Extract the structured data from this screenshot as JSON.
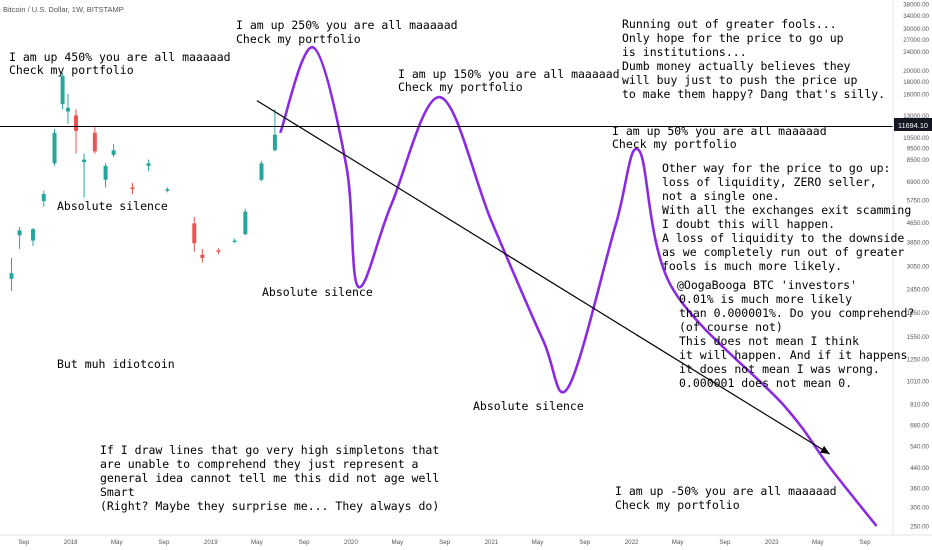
{
  "header": {
    "symbol_label": "Bitcoin / U.S. Dollar, 1W, BITSTAMP"
  },
  "price_scale": {
    "ticks": [
      "38000.00",
      "34000.00",
      "30000.00",
      "27000.00",
      "24000.00",
      "20000.00",
      "18000.00",
      "16000.00",
      "13000.00",
      "10500.00",
      "9500.00",
      "8500.00",
      "6900.00",
      "5750.00",
      "4650.00",
      "3850.00",
      "3050.00",
      "2450.00",
      "1950.00",
      "1550.00",
      "1250.00",
      "1010.00",
      "810.00",
      "660.00",
      "540.00",
      "440.00",
      "360.00",
      "300.00",
      "250.00"
    ],
    "current_price": "11694.10",
    "current_price_color": "#131722"
  },
  "time_axis": {
    "labels": [
      "Sep",
      "2018",
      "May",
      "Sep",
      "2019",
      "May",
      "Sep",
      "2020",
      "May",
      "Sep",
      "2021",
      "May",
      "Sep",
      "2022",
      "May",
      "Sep",
      "2023",
      "May",
      "Sep"
    ]
  },
  "annotations": {
    "up450": [
      "I am up 450% you are all maaaaad",
      "Check my portfolio"
    ],
    "up250": [
      "I am up 250% you are all maaaaad",
      "Check my portfolio"
    ],
    "up150": [
      "I am up 150% you are all maaaaad",
      "Check my portfolio"
    ],
    "up50": [
      "I am up 50% you are all maaaaad",
      "Check my portfolio"
    ],
    "down50": [
      "I am up -50% you are all maaaaad",
      "Check my portfolio"
    ],
    "silence1": "Absolute silence",
    "silence2": "Absolute silence",
    "silence3": "Absolute silence",
    "muh": "But muh idiotcoin",
    "greater_fools": [
      "Running out of greater fools...",
      "Only hope for the price to go up",
      "is institutions...",
      "Dumb money actually believes they",
      "will buy just to push the price up",
      "to make them happy? Dang that's silly."
    ],
    "other_way": [
      "Other way for the price to go up:",
      "loss of liquidity, ZERO seller,",
      "not a single one.",
      "With all the exchanges exit scamming",
      "I doubt this will happen.",
      "A loss of liquidity to the downside",
      "as we completely run out of greater",
      "fools is much more likely."
    ],
    "oogabooga": [
      "@OogaBooga BTC 'investors'",
      "0.01% is much more likely",
      "than 0.000001%. Do you comprehend?",
      "(of course not)",
      "This does not mean I think",
      "it will happen. And if it happens",
      "it does not mean I was wrong.",
      "0.000001 does not mean 0."
    ],
    "draw_lines": [
      "If I draw lines that go very high simpletons that",
      "are unable to comprehend they just represent a",
      "general idea cannot tell me this did not age well",
      "Smart",
      "(Right? Maybe they surprise me... They always do)"
    ]
  },
  "colors": {
    "up_candle": "#26a69a",
    "down_candle": "#ef5350",
    "projection": "#8a2be2",
    "trendline": "#000000",
    "price_line": "#000000",
    "text": "#000000"
  },
  "chart_data": {
    "type": "candlestick",
    "title": "Bitcoin / U.S. Dollar, 1W, BITSTAMP",
    "y_scale": "log",
    "candles": [
      {
        "date": "2017-07-31",
        "o": 2700,
        "h": 3300,
        "l": 2400,
        "c": 2850
      },
      {
        "date": "2017-08-21",
        "o": 4100,
        "h": 4450,
        "l": 3600,
        "c": 4300
      },
      {
        "date": "2017-09-25",
        "o": 3900,
        "h": 4400,
        "l": 3700,
        "c": 4350
      },
      {
        "date": "2017-10-23",
        "o": 5700,
        "h": 6300,
        "l": 5400,
        "c": 6100
      },
      {
        "date": "2017-11-20",
        "o": 8200,
        "h": 11400,
        "l": 8000,
        "c": 11000
      },
      {
        "date": "2017-12-11",
        "o": 14500,
        "h": 19600,
        "l": 13800,
        "c": 19000
      },
      {
        "date": "2017-12-25",
        "o": 13500,
        "h": 16000,
        "l": 12000,
        "c": 14000
      },
      {
        "date": "2018-01-15",
        "o": 13000,
        "h": 13800,
        "l": 9000,
        "c": 11200
      },
      {
        "date": "2018-02-05",
        "o": 8300,
        "h": 9000,
        "l": 5900,
        "c": 8500
      },
      {
        "date": "2018-03-05",
        "o": 11000,
        "h": 11700,
        "l": 9000,
        "c": 9200
      },
      {
        "date": "2018-04-02",
        "o": 7000,
        "h": 8200,
        "l": 6500,
        "c": 8000
      },
      {
        "date": "2018-04-23",
        "o": 8900,
        "h": 9900,
        "l": 8700,
        "c": 9300
      },
      {
        "date": "2018-06-11",
        "o": 6500,
        "h": 6800,
        "l": 6100,
        "c": 6400
      },
      {
        "date": "2018-07-23",
        "o": 8000,
        "h": 8500,
        "l": 7600,
        "c": 8200
      },
      {
        "date": "2018-09-10",
        "o": 6300,
        "h": 6500,
        "l": 6200,
        "c": 6400
      },
      {
        "date": "2018-11-19",
        "o": 4600,
        "h": 4900,
        "l": 3500,
        "c": 3800
      },
      {
        "date": "2018-12-10",
        "o": 3400,
        "h": 3600,
        "l": 3150,
        "c": 3300
      },
      {
        "date": "2019-01-21",
        "o": 3550,
        "h": 3620,
        "l": 3420,
        "c": 3500
      },
      {
        "date": "2019-03-04",
        "o": 3850,
        "h": 3980,
        "l": 3800,
        "c": 3900
      },
      {
        "date": "2019-04-01",
        "o": 4150,
        "h": 5300,
        "l": 4100,
        "c": 5150
      },
      {
        "date": "2019-05-13",
        "o": 7000,
        "h": 8400,
        "l": 6900,
        "c": 8200
      },
      {
        "date": "2019-06-17",
        "o": 9300,
        "h": 13800,
        "l": 9200,
        "c": 10800
      }
    ],
    "current_price": 11694.1,
    "series": [
      {
        "name": "projection",
        "points": [
          {
            "date": "2019-07-01",
            "y": 11000
          },
          {
            "date": "2019-09-25",
            "y": 25000
          },
          {
            "date": "2019-12-20",
            "y": 8000
          },
          {
            "date": "2020-01-20",
            "y": 2500
          },
          {
            "date": "2020-04-15",
            "y": 5500
          },
          {
            "date": "2020-08-20",
            "y": 15500
          },
          {
            "date": "2021-01-01",
            "y": 4700
          },
          {
            "date": "2021-05-15",
            "y": 1500
          },
          {
            "date": "2021-07-20",
            "y": 950
          },
          {
            "date": "2021-11-20",
            "y": 4500
          },
          {
            "date": "2022-01-20",
            "y": 9300
          },
          {
            "date": "2022-04-15",
            "y": 2500
          },
          {
            "date": "2023-02-01",
            "y": 800
          },
          {
            "date": "2023-06-01",
            "y": 440
          },
          {
            "date": "2023-10-01",
            "y": 250
          }
        ]
      },
      {
        "name": "trendline",
        "points": [
          {
            "date": "2019-05-01",
            "y": 15000
          },
          {
            "date": "2023-06-01",
            "y": 500
          }
        ]
      }
    ]
  }
}
